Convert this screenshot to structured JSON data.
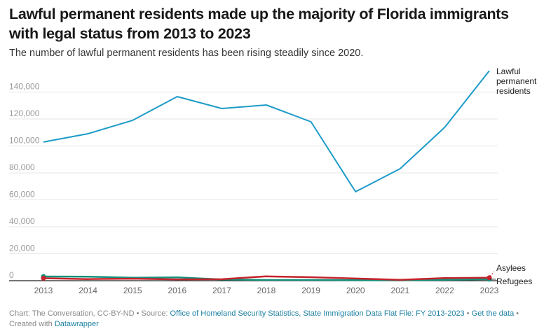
{
  "header": {
    "title": "Lawful permanent residents made up the majority of Florida immigrants with legal status from 2013 to 2023",
    "subtitle": "The number of lawful permanent residents has been rising steadily since 2020."
  },
  "chart_data": {
    "type": "line",
    "title": "Lawful permanent residents made up the majority of Florida immigrants with legal status from 2013 to 2023",
    "subtitle": "The number of lawful permanent residents has been rising steadily since 2020.",
    "xlabel": "",
    "ylabel": "",
    "x": [
      "2013",
      "2014",
      "2015",
      "2016",
      "2017",
      "2018",
      "2019",
      "2020",
      "2021",
      "2022",
      "2023"
    ],
    "ylim": [
      0,
      150000
    ],
    "yticks": [
      0,
      20000,
      40000,
      60000,
      80000,
      100000,
      120000,
      140000
    ],
    "ytick_labels": [
      "0",
      "20,000",
      "40,000",
      "60,000",
      "80,000",
      "100,000",
      "120,000",
      "140,000"
    ],
    "grid": true,
    "legend": "direct-labels-right",
    "series": [
      {
        "name": "Lawful permanent residents",
        "label_lines": [
          "Lawful",
          "permanent",
          "residents"
        ],
        "color": "#1d9bc8",
        "values": [
          102900,
          109100,
          119000,
          136600,
          127800,
          130400,
          117900,
          66000,
          83100,
          113800,
          155800
        ]
      },
      {
        "name": "Asylees",
        "label_lines": [
          "Asylees"
        ],
        "color": "#c4232b",
        "values": [
          1800,
          1200,
          1500,
          1000,
          1100,
          3200,
          2600,
          1600,
          600,
          1900,
          2200
        ]
      },
      {
        "name": "Refugees",
        "label_lines": [
          "Refugees"
        ],
        "color": "#15907a",
        "values": [
          3100,
          3000,
          2200,
          2500,
          900,
          500,
          500,
          400,
          300,
          600,
          1100
        ]
      }
    ]
  },
  "footer": {
    "credit": "Chart: The Conversation, CC-BY-ND",
    "sep": " • ",
    "source_label": "Source: ",
    "source_link": "Office of Homeland Security Statistics, State Immigration Data Flat File: FY 2013-2023",
    "get_data": "Get the data",
    "created_with": "Created with ",
    "datawrapper": "Datawrapper"
  }
}
